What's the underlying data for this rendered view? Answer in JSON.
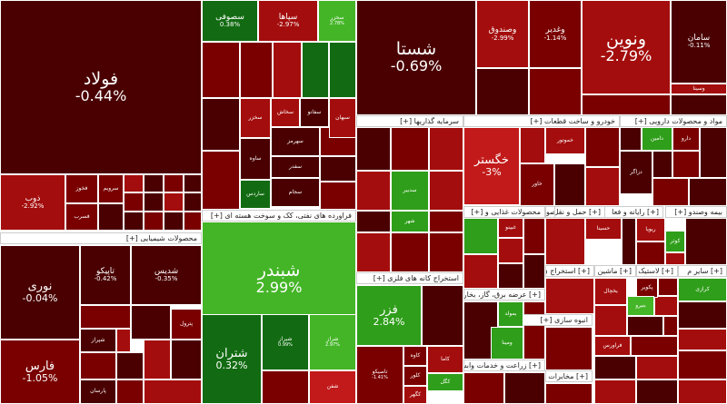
{
  "palette": {
    "d3": "#4a0000",
    "d2": "#7a0000",
    "d1": "#a40d0d",
    "d0": "#c21a1a",
    "g1": "#2f9e1a",
    "g2": "#44b527",
    "g3": "#126b12"
  },
  "headers": [
    {
      "name": "petrochem-chemicals-header",
      "label": "محصولات شیمیایی [+]"
    },
    {
      "name": "refining-header",
      "label": "فراورده های نفتی، کک و سوخت هسته ای [+]"
    },
    {
      "name": "investment-header",
      "label": "سرمایه گذاریها [+]"
    },
    {
      "name": "auto-header",
      "label": "خودرو و ساخت قطعات [+]"
    },
    {
      "name": "pharma-header",
      "label": "مواد و محصولات دارویی [+]"
    },
    {
      "name": "basic-metals-header",
      "label": "استخراج کانه های فلزی [+]"
    },
    {
      "name": "food-header",
      "label": "محصولات غذایی و [+]"
    },
    {
      "name": "contracting-header",
      "label": "انبوه سازی [+]"
    },
    {
      "name": "insurance-header",
      "label": "بیمه وصندو [+]"
    },
    {
      "name": "misc1-header",
      "label": "[+] عرضه برق، گاز، بخاروآ"
    },
    {
      "name": "misc2-header",
      "label": "[+] رایانه و فعا"
    },
    {
      "name": "misc3-header",
      "label": "[+] سایر م"
    },
    {
      "name": "misc4-header",
      "label": "[+] لاستیک"
    },
    {
      "name": "misc5-header",
      "label": "[+] ماشین"
    },
    {
      "name": "misc6-header",
      "label": "[+] استخراج ن"
    },
    {
      "name": "misc7-header",
      "label": "[+] زراعت و خدمات وابسته"
    },
    {
      "name": "misc8-header",
      "label": "[+] مخابرات"
    },
    {
      "name": "misc9-header",
      "label": "[+] محصولات"
    },
    {
      "name": "misc10-header",
      "label": "[+] حمل و نقل، انبارداری"
    }
  ],
  "tiles": [
    {
      "name": "tile-foolad",
      "label": "فولاد",
      "pct": "-0.44%",
      "color": "d3",
      "size": "big"
    },
    {
      "name": "tile-shasta",
      "label": "شستا",
      "pct": "-0.69%",
      "color": "d3",
      "size": "big"
    },
    {
      "name": "tile-vanovin",
      "label": "ونوین",
      "pct": "-2.79%",
      "color": "d1",
      "size": "big"
    },
    {
      "name": "tile-shebandar",
      "label": "شبندر",
      "pct": "2.99%",
      "color": "g2",
      "size": "big"
    },
    {
      "name": "tile-fars",
      "label": "فارس",
      "pct": "-1.05%",
      "color": "d2",
      "size": "mid"
    },
    {
      "name": "tile-nouri",
      "label": "نوری",
      "pct": "-0.04%",
      "color": "d3",
      "size": "mid"
    },
    {
      "name": "tile-shetran",
      "label": "شتران",
      "pct": "0.32%",
      "color": "g3",
      "size": "mid"
    },
    {
      "name": "tile-fazar",
      "label": "فزر",
      "pct": "2.84%",
      "color": "g1",
      "size": "mid"
    },
    {
      "name": "tile-khagostar",
      "label": "خگستر",
      "pct": "-3%",
      "color": "d0",
      "size": "mid"
    },
    {
      "name": "tile-vsandough",
      "label": "وصندوق",
      "pct": "-2.99%",
      "color": "d1",
      "size": "sm"
    },
    {
      "name": "tile-vaghadir",
      "label": "وغدیر",
      "pct": "-1.14%",
      "color": "d2",
      "size": "sm"
    },
    {
      "name": "tile-saman",
      "label": "سامان",
      "pct": "-0.11%",
      "color": "d3",
      "size": "sm"
    },
    {
      "name": "tile-tapiko",
      "label": "تاپیکو",
      "pct": "-0.42%",
      "color": "d3",
      "size": "sm"
    },
    {
      "name": "tile-shadis",
      "label": "شدیس",
      "pct": "-0.35%",
      "color": "d3",
      "size": "sm"
    },
    {
      "name": "tile-zob",
      "label": "ذوب",
      "pct": "-2.92%",
      "color": "d1",
      "size": "sm"
    },
    {
      "name": "tile-soufi",
      "label": "سصوفی",
      "pct": "0.38%",
      "color": "g3",
      "size": "sm"
    },
    {
      "name": "tile-sipaha",
      "label": "سپاها",
      "pct": "-2.97%",
      "color": "d1",
      "size": "sm"
    },
    {
      "name": "tile-sakharo",
      "label": "سخزر",
      "pct": "2.78%",
      "color": "g2",
      "size": "xs"
    },
    {
      "name": "tile-shiraz",
      "label": "شیراز",
      "pct": "0.99%",
      "color": "g3",
      "size": "xs"
    },
    {
      "name": "tile-sharaz",
      "label": "شراز",
      "pct": "2.97%",
      "color": "g2",
      "size": "xs"
    },
    {
      "name": "tile-tapsiko",
      "label": "تاصیکو",
      "pct": "-1.41%",
      "color": "d2",
      "size": "xs"
    },
    {
      "name": "tile-fakhouz",
      "label": "فخوز",
      "pct": "",
      "color": "d2",
      "size": "xs"
    },
    {
      "name": "tile-fasorban",
      "label": "فسرب",
      "pct": "",
      "color": "d2",
      "size": "xs"
    },
    {
      "name": "tile-sarvim",
      "label": "سرویم",
      "pct": "",
      "color": "d2",
      "size": "xs"
    },
    {
      "name": "tile-vasina",
      "label": "وسینا",
      "pct": "",
      "color": "d1",
      "size": "xs"
    },
    {
      "name": "tile-vakhavar",
      "label": "خاور",
      "pct": "",
      "color": "d2",
      "size": "xs"
    },
    {
      "name": "tile-khamotor",
      "label": "خموتور",
      "pct": "",
      "color": "d1",
      "size": "xs"
    },
    {
      "name": "tile-damin",
      "label": "دامین",
      "pct": "",
      "color": "g1",
      "size": "xs"
    },
    {
      "name": "tile-darou",
      "label": "دارو",
      "pct": "",
      "color": "d2",
      "size": "xs"
    },
    {
      "name": "tile-dzagro",
      "label": "دزاگر",
      "pct": "",
      "color": "d3",
      "size": "xs"
    },
    {
      "name": "tile-sodbir",
      "label": "سدبیر",
      "pct": "",
      "color": "g1",
      "size": "xs"
    },
    {
      "name": "tile-shahr",
      "label": "شهر",
      "pct": "",
      "color": "g1",
      "size": "xs"
    },
    {
      "name": "tile-kave",
      "label": "کاوه",
      "pct": "",
      "color": "d2",
      "size": "xs"
    },
    {
      "name": "tile-kalor",
      "label": "کلور",
      "pct": "",
      "color": "d2",
      "size": "xs"
    },
    {
      "name": "tile-kama",
      "label": "کاما",
      "pct": "",
      "color": "d1",
      "size": "xs"
    },
    {
      "name": "tile-kegol",
      "label": "کگل",
      "pct": "",
      "color": "g1",
      "size": "xs"
    },
    {
      "name": "tile-koghahr",
      "label": "کگهر",
      "pct": "",
      "color": "d1",
      "size": "xs"
    },
    {
      "name": "tile-shefan",
      "label": "شفن",
      "pct": "",
      "color": "d0",
      "size": "xs"
    },
    {
      "name": "tile-sakhaz",
      "label": "سخزر",
      "pct": "",
      "color": "d1",
      "size": "xs"
    },
    {
      "name": "tile-sesahar",
      "label": "سهرمز",
      "pct": "",
      "color": "d3",
      "size": "xs"
    },
    {
      "name": "tile-saveh",
      "label": "ساوه",
      "pct": "",
      "color": "d3",
      "size": "xs"
    },
    {
      "name": "tile-sahash",
      "label": "سخاش",
      "pct": "",
      "color": "d1",
      "size": "xs"
    },
    {
      "name": "tile-sefano",
      "label": "سفانو",
      "pct": "",
      "color": "d3",
      "size": "xs"
    },
    {
      "name": "tile-sebehan",
      "label": "سبهان",
      "pct": "",
      "color": "d1",
      "size": "xs"
    },
    {
      "name": "tile-sardar",
      "label": "سفدر",
      "pct": "",
      "color": "d3",
      "size": "xs"
    },
    {
      "name": "tile-sejam",
      "label": "سجام",
      "pct": "",
      "color": "d3",
      "size": "xs"
    },
    {
      "name": "tile-sardoor",
      "label": "ساردس",
      "pct": "",
      "color": "g3",
      "size": "xs"
    },
    {
      "name": "tile-ghenabe",
      "label": "غبینو",
      "pct": "",
      "color": "d1",
      "size": "xs"
    },
    {
      "name": "tile-bemolded",
      "label": "بمولد",
      "pct": "",
      "color": "g1",
      "size": "xs"
    },
    {
      "name": "tile-vamina",
      "label": "ومینا",
      "pct": "",
      "color": "g1",
      "size": "xs"
    },
    {
      "name": "tile-hasina",
      "label": "حسینا",
      "pct": "",
      "color": "d1",
      "size": "xs"
    },
    {
      "name": "tile-rayone",
      "label": "ریویا",
      "pct": "",
      "color": "d1",
      "size": "xs"
    },
    {
      "name": "tile-kuter",
      "label": "کوثر",
      "pct": "",
      "color": "g1",
      "size": "xs"
    },
    {
      "name": "tile-yakchal",
      "label": "یخچال",
      "pct": "",
      "color": "d1",
      "size": "xs"
    },
    {
      "name": "tile-pakvir",
      "label": "پکویر",
      "pct": "",
      "color": "d2",
      "size": "xs"
    },
    {
      "name": "tile-karazi",
      "label": "کرازی",
      "pct": "",
      "color": "g1",
      "size": "xs"
    },
    {
      "name": "tile-bentoor",
      "label": "بنیرو",
      "pct": "",
      "color": "g2",
      "size": "xs"
    },
    {
      "name": "tile-petrol",
      "label": "پترول",
      "pct": "",
      "color": "d2",
      "size": "xs"
    },
    {
      "name": "tile-shiraj",
      "label": "شپراز",
      "pct": "",
      "color": "d3",
      "size": "xs"
    },
    {
      "name": "tile-parsan",
      "label": "پارسان",
      "pct": "",
      "color": "d3",
      "size": "xs"
    },
    {
      "name": "tile-faravari",
      "label": "فراورس",
      "pct": "",
      "color": "d1",
      "size": "xs"
    }
  ]
}
